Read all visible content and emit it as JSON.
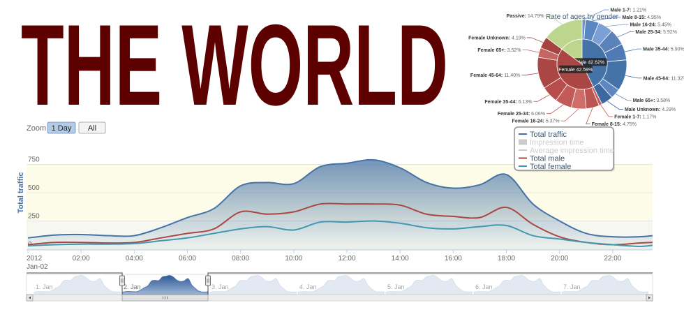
{
  "title": "THE WORLD",
  "zoom": {
    "label": "Zoom",
    "buttons": [
      "1 Day",
      "All"
    ],
    "selected": 0
  },
  "chart_data": [
    {
      "type": "pie",
      "title": "Rate of ages by gender",
      "inner": {
        "categories": [
          "Male",
          "Female"
        ],
        "values": [
          42.62,
          42.59
        ],
        "value_labels": [
          "Male 42.62%",
          "Female 42.59%"
        ],
        "colors": [
          "#4572a7",
          "#aa4643"
        ]
      },
      "outer": {
        "categories": [
          "Male 1-7:",
          "Male 8-15:",
          "Male 16-24:",
          "Male 25-34:",
          "Male 35-44:",
          "Male 45-64:",
          "Male 65+:",
          "Male Unknown:",
          "Female 1-7:",
          "Female 8-15:",
          "Female 16-24:",
          "Female 25-34:",
          "Female 35-44:",
          "Female 45-64:",
          "Female 65+:",
          "Female Unknown:",
          "Passive:"
        ],
        "values": [
          1.21,
          4.95,
          5.45,
          5.92,
          5.9,
          11.32,
          3.58,
          4.29,
          1.17,
          4.75,
          5.37,
          6.06,
          6.13,
          11.4,
          3.52,
          4.19,
          14.79
        ],
        "value_labels": [
          "1.21%",
          "4.95%",
          "5.45%",
          "5.92%",
          "5.90%",
          "11.32%",
          "3.58%",
          "4.29%",
          "1.17%",
          "4.75%",
          "5.37%",
          "6.06%",
          "6.13%",
          "11.40%",
          "3.52%",
          "4.19%",
          "14.79%"
        ],
        "colors": [
          "#6a92cc",
          "#5a86c2",
          "#7aa0d6",
          "#5b83bb",
          "#4f7ab5",
          "#4572a7",
          "#5c87c0",
          "#3d67a0",
          "#c8625f",
          "#bd5653",
          "#d06d6a",
          "#c25a57",
          "#b84e4b",
          "#aa4643",
          "#c66663",
          "#a64441",
          "#bcd68e"
        ]
      },
      "passive_color": "#bcd68e"
    },
    {
      "type": "area",
      "ylabel": "Total traffic",
      "x": [
        0,
        1,
        2,
        3,
        4,
        5,
        6,
        7,
        8,
        9,
        10,
        11,
        12,
        13,
        14,
        15,
        16,
        17,
        18,
        19,
        20,
        21,
        22,
        23,
        23.5
      ],
      "xlim": [
        0,
        23.5
      ],
      "xticks": [
        {
          "value": 0,
          "label": "2012"
        },
        {
          "value": 2,
          "label": "02:00"
        },
        {
          "value": 4,
          "label": "04:00"
        },
        {
          "value": 6,
          "label": "06:00"
        },
        {
          "value": 8,
          "label": "08:00"
        },
        {
          "value": 10,
          "label": "10:00"
        },
        {
          "value": 12,
          "label": "12:00"
        },
        {
          "value": 14,
          "label": "14:00"
        },
        {
          "value": 16,
          "label": "16:00"
        },
        {
          "value": 18,
          "label": "18:00"
        },
        {
          "value": 20,
          "label": "20:00"
        },
        {
          "value": 22,
          "label": "22:00"
        }
      ],
      "x_date_label": "Jan-02",
      "ylim": [
        0,
        1000
      ],
      "yticks": [
        0,
        250,
        500,
        750
      ],
      "plot_bands": [
        {
          "from": 250,
          "to": 750,
          "color": "#fcfce8"
        },
        {
          "from": 0,
          "to": 250,
          "color": "#f6f8f0"
        }
      ],
      "legend": {
        "position": "upper right"
      },
      "series": [
        {
          "name": "Total traffic",
          "color": "#4572a7",
          "fill": true,
          "values": [
            100,
            125,
            130,
            120,
            120,
            190,
            280,
            360,
            560,
            590,
            580,
            730,
            760,
            790,
            720,
            590,
            540,
            570,
            660,
            400,
            250,
            140,
            110,
            110,
            120
          ]
        },
        {
          "name": "Impression time",
          "color": "#cccccc",
          "visible": false
        },
        {
          "name": "Average impression time",
          "color": "#cccccc",
          "visible": false
        },
        {
          "name": "Total male",
          "color": "#aa4643",
          "values": [
            40,
            60,
            60,
            55,
            60,
            100,
            140,
            180,
            330,
            310,
            330,
            400,
            400,
            400,
            390,
            310,
            290,
            280,
            370,
            220,
            110,
            60,
            40,
            55,
            60
          ]
        },
        {
          "name": "Total female",
          "color": "#4198af",
          "values": [
            30,
            40,
            45,
            45,
            50,
            75,
            100,
            140,
            180,
            200,
            170,
            240,
            240,
            250,
            230,
            190,
            180,
            200,
            210,
            120,
            90,
            60,
            40,
            25,
            35
          ]
        }
      ]
    }
  ],
  "navigator": {
    "labels": [
      "1. Jan",
      "2. Jan",
      "3. Jan",
      "4. Jan",
      "5. Jan",
      "6. Jan",
      "7. Jan"
    ],
    "selected": 1
  }
}
